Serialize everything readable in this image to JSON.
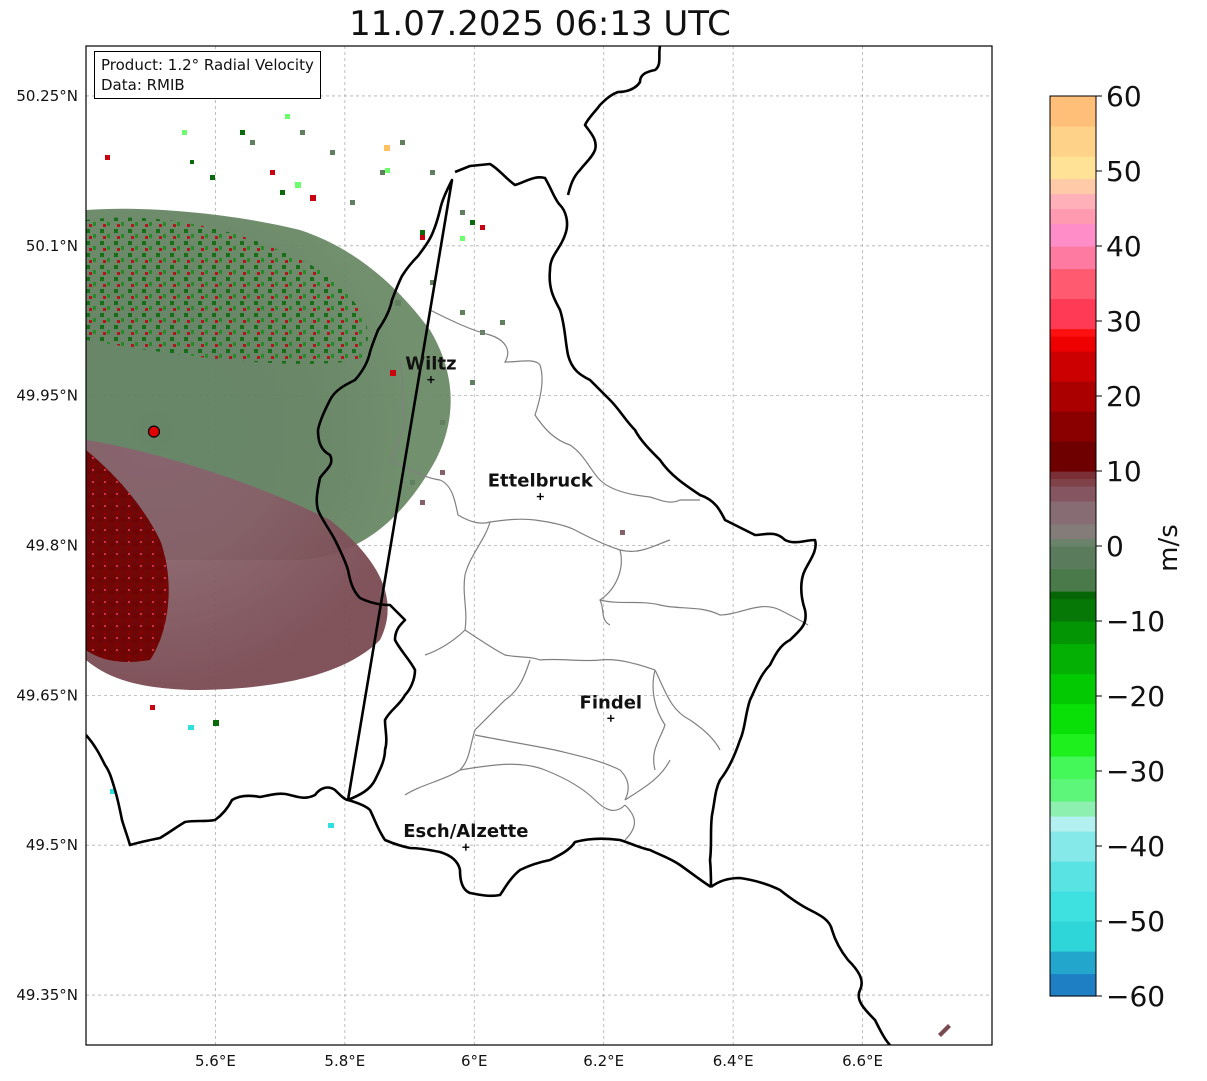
{
  "title": "11.07.2025 06:13 UTC",
  "info": {
    "product_line": "Product: 1.2° Radial Velocity",
    "data_line": "Data: RMIB"
  },
  "map": {
    "lon_range": [
      5.4,
      6.8
    ],
    "lat_range": [
      49.3,
      50.3
    ],
    "lon_ticks": [
      5.6,
      5.8,
      6.0,
      6.2,
      6.4,
      6.6
    ],
    "lon_tick_labels": [
      "5.6°E",
      "5.8°E",
      "6°E",
      "6.2°E",
      "6.4°E",
      "6.6°E"
    ],
    "lat_ticks": [
      50.25,
      50.1,
      49.95,
      49.8,
      49.65,
      49.5,
      49.35
    ],
    "lat_tick_labels": [
      "50.25°N",
      "50.1°N",
      "49.95°N",
      "49.8°N",
      "49.65°N",
      "49.5°N",
      "49.35°N"
    ],
    "gridlines": true,
    "radar_site": {
      "lon": 5.505,
      "lat": 49.914
    },
    "cities": [
      {
        "name": "Wiltz",
        "lon": 5.933,
        "lat": 49.966
      },
      {
        "name": "Ettelbruck",
        "lon": 6.102,
        "lat": 49.849
      },
      {
        "name": "Findel",
        "lon": 6.211,
        "lat": 49.627
      },
      {
        "name": "Esch/Alzette",
        "lon": 5.987,
        "lat": 49.498
      }
    ]
  },
  "colorbar": {
    "unit": "m/s",
    "min": -60,
    "max": 60,
    "ticks": [
      60,
      50,
      40,
      30,
      20,
      10,
      0,
      -10,
      -20,
      -30,
      -40,
      -50,
      -60
    ],
    "tick_labels": [
      "60",
      "50",
      "40",
      "30",
      "20",
      "10",
      "0",
      "−10",
      "−20",
      "−30",
      "−40",
      "−50",
      "−60"
    ]
  },
  "colors": {
    "border": "#000000",
    "canton_lines": "#808080",
    "radar_dot": "#e00000"
  }
}
